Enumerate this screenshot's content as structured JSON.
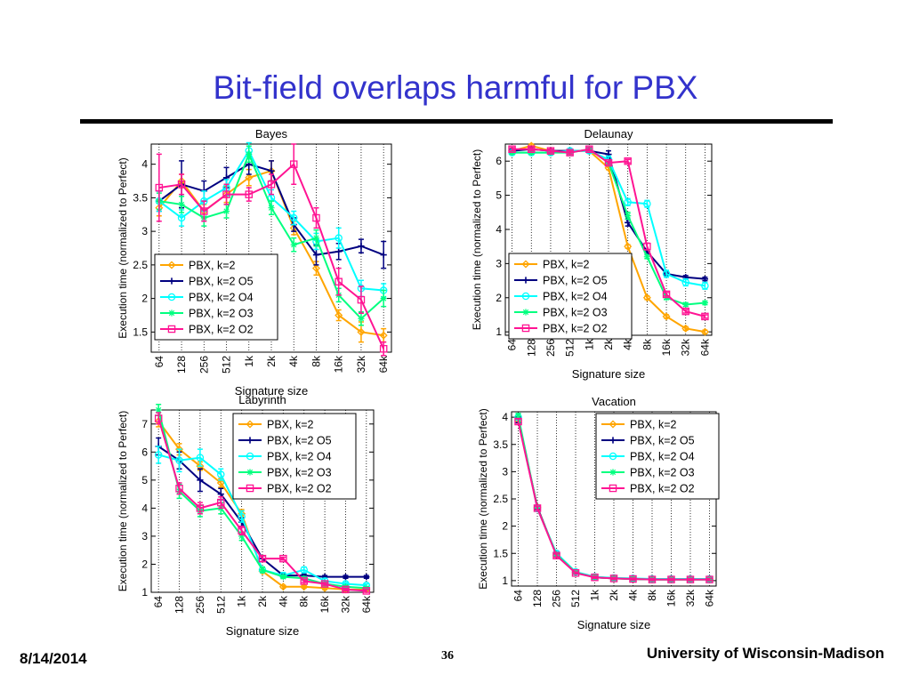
{
  "slide": {
    "title": "Bit-field overlaps harmful for PBX",
    "date": "8/14/2014",
    "page_number": "36",
    "organization": "University of Wisconsin-Madison"
  },
  "colors": {
    "title": "#3333cc",
    "series": [
      "#ffa500",
      "#000080",
      "#00ffff",
      "#00ff7f",
      "#ff1493"
    ]
  },
  "chart_data": [
    {
      "type": "line",
      "title": "Bayes",
      "xlabel": "Signature size",
      "ylabel": "Execution time (normalized to Perfect)",
      "categories": [
        "64",
        "128",
        "256",
        "512",
        "1k",
        "2k",
        "4k",
        "8k",
        "16k",
        "32k",
        "64k"
      ],
      "ylim": [
        1.2,
        4.3
      ],
      "yticks": [
        1.5,
        2,
        2.5,
        3,
        3.5,
        4
      ],
      "yticklabels": [
        "1.5",
        "2",
        "2.5",
        "3",
        "3.5",
        "4"
      ],
      "legend_position": "bottom-left",
      "series": [
        {
          "name": "PBX, k=2",
          "values": [
            3.35,
            3.75,
            3.3,
            3.55,
            3.8,
            3.9,
            3.05,
            2.45,
            1.75,
            1.5,
            1.45
          ],
          "err": [
            0.12,
            0.1,
            0.1,
            0.12,
            0.12,
            0.15,
            0.1,
            0.1,
            0.08,
            0.15,
            0.1
          ]
        },
        {
          "name": "PBX, k=2 O5",
          "values": [
            3.45,
            3.7,
            3.6,
            3.8,
            4.0,
            3.9,
            3.1,
            2.65,
            2.7,
            2.78,
            2.65
          ],
          "err": [
            0.15,
            0.35,
            0.15,
            0.15,
            0.15,
            0.15,
            0.1,
            0.15,
            0.12,
            0.1,
            0.2
          ]
        },
        {
          "name": "PBX, k=2 O4",
          "values": [
            3.45,
            3.2,
            3.45,
            3.65,
            4.2,
            3.5,
            3.2,
            2.85,
            2.9,
            2.15,
            2.12
          ],
          "err": [
            0.15,
            0.12,
            0.15,
            0.12,
            0.12,
            0.12,
            0.1,
            0.12,
            0.15,
            0.12,
            0.1
          ]
        },
        {
          "name": "PBX, k=2 O3",
          "values": [
            3.45,
            3.4,
            3.2,
            3.3,
            4.15,
            3.35,
            2.8,
            2.9,
            2.05,
            1.7,
            2.0
          ],
          "err": [
            0.12,
            0.12,
            0.12,
            0.1,
            0.12,
            0.1,
            0.1,
            0.12,
            0.1,
            0.1,
            0.12
          ]
        },
        {
          "name": "PBX, k=2 O2",
          "values": [
            3.65,
            3.7,
            3.3,
            3.55,
            3.55,
            3.7,
            4.0,
            3.2,
            2.25,
            1.98,
            1.25
          ],
          "err": [
            0.5,
            0.15,
            0.15,
            0.15,
            0.1,
            0.15,
            0.3,
            0.15,
            0.2,
            0.2,
            0.1
          ]
        }
      ]
    },
    {
      "type": "line",
      "title": "Delaunay",
      "xlabel": "Signature size",
      "ylabel": "Execution time (normalized to Perfect)",
      "categories": [
        "64",
        "128",
        "256",
        "512",
        "1k",
        "2k",
        "4k",
        "8k",
        "16k",
        "32k",
        "64k"
      ],
      "ylim": [
        0.9,
        6.5
      ],
      "yticks": [
        1,
        2,
        3,
        4,
        5,
        6
      ],
      "yticklabels": [
        "1",
        "2",
        "3",
        "4",
        "5",
        "6"
      ],
      "legend_position": "bottom-left",
      "series": [
        {
          "name": "PBX, k=2",
          "values": [
            6.3,
            6.45,
            6.3,
            6.3,
            6.3,
            5.8,
            3.5,
            2.0,
            1.45,
            1.1,
            1.0
          ],
          "err": [
            0.05,
            0.05,
            0.05,
            0.05,
            0.05,
            0.05,
            0.05,
            0.05,
            0.05,
            0.05,
            0.05
          ]
        },
        {
          "name": "PBX, k=2 O5",
          "values": [
            6.3,
            6.35,
            6.3,
            6.3,
            6.3,
            6.2,
            4.2,
            3.35,
            2.7,
            2.6,
            2.55
          ],
          "err": [
            0.05,
            0.05,
            0.05,
            0.05,
            0.05,
            0.1,
            0.1,
            0.05,
            0.05,
            0.05,
            0.05
          ]
        },
        {
          "name": "PBX, k=2 O4",
          "values": [
            6.25,
            6.25,
            6.25,
            6.3,
            6.3,
            6.05,
            4.8,
            4.75,
            2.7,
            2.45,
            2.35
          ],
          "err": [
            0.05,
            0.05,
            0.05,
            0.05,
            0.05,
            0.1,
            0.1,
            0.1,
            0.1,
            0.1,
            0.1
          ]
        },
        {
          "name": "PBX, k=2 O3",
          "values": [
            6.25,
            6.25,
            6.25,
            6.25,
            6.35,
            5.95,
            4.4,
            3.2,
            2.0,
            1.8,
            1.85
          ],
          "err": [
            0.05,
            0.05,
            0.05,
            0.05,
            0.05,
            0.05,
            0.1,
            0.05,
            0.05,
            0.05,
            0.05
          ]
        },
        {
          "name": "PBX, k=2 O2",
          "values": [
            6.35,
            6.35,
            6.3,
            6.25,
            6.35,
            5.95,
            6.0,
            3.5,
            2.1,
            1.6,
            1.45
          ],
          "err": [
            0.05,
            0.05,
            0.05,
            0.05,
            0.05,
            0.05,
            0.05,
            0.1,
            0.05,
            0.05,
            0.05
          ]
        }
      ]
    },
    {
      "type": "line",
      "title": "Labyrinth",
      "xlabel": "Signature size",
      "ylabel": "Execution time (normalized to Perfect)",
      "categories": [
        "64",
        "128",
        "256",
        "512",
        "1k",
        "2k",
        "4k",
        "8k",
        "16k",
        "32k",
        "64k"
      ],
      "ylim": [
        1.0,
        7.5
      ],
      "yticks": [
        1,
        2,
        3,
        4,
        5,
        6,
        7
      ],
      "yticklabels": [
        "1",
        "2",
        "3",
        "4",
        "5",
        "6",
        "7"
      ],
      "legend_position": "top-right",
      "series": [
        {
          "name": "PBX, k=2",
          "values": [
            7.1,
            6.1,
            5.5,
            4.9,
            3.8,
            1.75,
            1.2,
            1.2,
            1.15,
            1.1,
            1.1
          ],
          "err": [
            0.2,
            0.2,
            0.15,
            0.15,
            0.15,
            0.05,
            0.05,
            0.05,
            0.05,
            0.05,
            0.05
          ]
        },
        {
          "name": "PBX, k=2 O5",
          "values": [
            6.2,
            5.7,
            5.0,
            4.5,
            3.5,
            2.2,
            1.6,
            1.6,
            1.55,
            1.55,
            1.55
          ],
          "err": [
            0.3,
            0.3,
            0.4,
            0.2,
            0.15,
            0.1,
            0.05,
            0.05,
            0.05,
            0.05,
            0.05
          ]
        },
        {
          "name": "PBX, k=2 O4",
          "values": [
            5.9,
            5.7,
            5.8,
            5.2,
            3.7,
            1.8,
            1.6,
            1.8,
            1.4,
            1.3,
            1.25
          ],
          "err": [
            0.3,
            0.4,
            0.3,
            0.2,
            0.2,
            0.1,
            0.1,
            0.1,
            0.1,
            0.05,
            0.05
          ]
        },
        {
          "name": "PBX, k=2 O3",
          "values": [
            7.5,
            4.6,
            3.9,
            4.0,
            3.0,
            1.8,
            1.55,
            1.5,
            1.3,
            1.2,
            1.15
          ],
          "err": [
            0.2,
            0.25,
            0.2,
            0.2,
            0.15,
            0.1,
            0.05,
            0.05,
            0.05,
            0.05,
            0.05
          ]
        },
        {
          "name": "PBX, k=2 O2",
          "values": [
            7.2,
            4.7,
            4.0,
            4.2,
            3.2,
            2.2,
            2.2,
            1.4,
            1.3,
            1.1,
            1.05
          ],
          "err": [
            0.2,
            0.2,
            0.2,
            0.2,
            0.15,
            0.1,
            0.05,
            0.05,
            0.05,
            0.05,
            0.05
          ]
        }
      ]
    },
    {
      "type": "line",
      "title": "Vacation",
      "xlabel": "Signature size",
      "ylabel": "Execution time (normalized to Perfect)",
      "categories": [
        "64",
        "128",
        "256",
        "512",
        "1k",
        "2k",
        "4k",
        "8k",
        "16k",
        "32k",
        "64k"
      ],
      "ylim": [
        0.9,
        4.1
      ],
      "yticks": [
        1,
        1.5,
        2,
        2.5,
        3,
        3.5,
        4
      ],
      "yticklabels": [
        "1",
        "1.5",
        "2",
        "2.5",
        "3",
        "3.5",
        "4"
      ],
      "legend_position": "top-right",
      "series": [
        {
          "name": "PBX, k=2",
          "values": [
            3.95,
            2.35,
            1.47,
            1.15,
            1.07,
            1.04,
            1.03,
            1.02,
            1.02,
            1.02,
            1.02
          ],
          "err": [
            0.05,
            0.03,
            0.03,
            0.02,
            0.02,
            0.02,
            0.02,
            0.02,
            0.02,
            0.02,
            0.02
          ]
        },
        {
          "name": "PBX, k=2 O5",
          "values": [
            3.95,
            2.35,
            1.47,
            1.15,
            1.06,
            1.04,
            1.03,
            1.02,
            1.02,
            1.02,
            1.02
          ],
          "err": [
            0.05,
            0.03,
            0.03,
            0.02,
            0.02,
            0.02,
            0.02,
            0.02,
            0.02,
            0.02,
            0.02
          ]
        },
        {
          "name": "PBX, k=2 O4",
          "values": [
            4.0,
            2.32,
            1.5,
            1.16,
            1.07,
            1.05,
            1.04,
            1.03,
            1.03,
            1.03,
            1.03
          ],
          "err": [
            0.05,
            0.03,
            0.03,
            0.02,
            0.02,
            0.02,
            0.02,
            0.02,
            0.02,
            0.02,
            0.02
          ]
        },
        {
          "name": "PBX, k=2 O3",
          "values": [
            4.02,
            2.33,
            1.48,
            1.15,
            1.06,
            1.04,
            1.03,
            1.02,
            1.02,
            1.02,
            1.02
          ],
          "err": [
            0.05,
            0.03,
            0.03,
            0.02,
            0.02,
            0.02,
            0.02,
            0.02,
            0.02,
            0.02,
            0.02
          ]
        },
        {
          "name": "PBX, k=2 O2",
          "values": [
            3.92,
            2.33,
            1.46,
            1.14,
            1.06,
            1.04,
            1.03,
            1.02,
            1.02,
            1.02,
            1.02
          ],
          "err": [
            0.05,
            0.03,
            0.03,
            0.02,
            0.02,
            0.02,
            0.02,
            0.02,
            0.02,
            0.02,
            0.02
          ]
        }
      ]
    }
  ]
}
